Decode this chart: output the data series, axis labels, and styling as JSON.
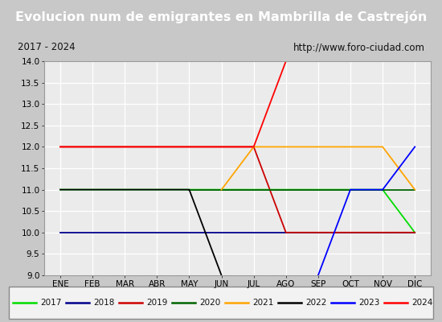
{
  "title": "Evolucion num de emigrantes en Mambrilla de Castrejón",
  "subtitle_left": "2017 - 2024",
  "subtitle_right": "http://www.foro-ciudad.com",
  "months": [
    "ENE",
    "FEB",
    "MAR",
    "ABR",
    "MAY",
    "JUN",
    "JUL",
    "AGO",
    "SEP",
    "OCT",
    "NOV",
    "DIC"
  ],
  "ylim": [
    9.0,
    14.0
  ],
  "yticks": [
    9.0,
    9.5,
    10.0,
    10.5,
    11.0,
    11.5,
    12.0,
    12.5,
    13.0,
    13.5,
    14.0
  ],
  "series": {
    "2017": {
      "color": "#00dd00",
      "x": [
        1,
        11,
        12
      ],
      "y": [
        11,
        11,
        10
      ]
    },
    "2018": {
      "color": "#00008b",
      "x": [
        1,
        12
      ],
      "y": [
        10,
        10
      ]
    },
    "2019": {
      "color": "#cc0000",
      "x": [
        1,
        7,
        8,
        12
      ],
      "y": [
        12,
        12,
        10,
        10
      ]
    },
    "2020": {
      "color": "#006400",
      "x": [
        5,
        12
      ],
      "y": [
        11,
        11
      ]
    },
    "2021": {
      "color": "#ffa500",
      "x": [
        6,
        7,
        11,
        12
      ],
      "y": [
        11,
        12,
        12,
        11
      ]
    },
    "2022": {
      "color": "#000000",
      "x": [
        1,
        5,
        6
      ],
      "y": [
        11,
        11,
        9
      ]
    },
    "2023": {
      "color": "#0000ff",
      "x": [
        9,
        10,
        11,
        12
      ],
      "y": [
        9,
        11,
        11,
        12
      ]
    },
    "2024": {
      "color": "#ff0000",
      "x": [
        1,
        7,
        8
      ],
      "y": [
        12,
        12,
        14
      ]
    }
  },
  "legend_order": [
    "2017",
    "2018",
    "2019",
    "2020",
    "2021",
    "2022",
    "2023",
    "2024"
  ],
  "bg_title": "#3a6bc4",
  "bg_subtitle": "#e0e0e0",
  "bg_plot": "#ebebeb",
  "grid_color": "#ffffff",
  "title_color": "#ffffff",
  "title_fontsize": 11.5
}
